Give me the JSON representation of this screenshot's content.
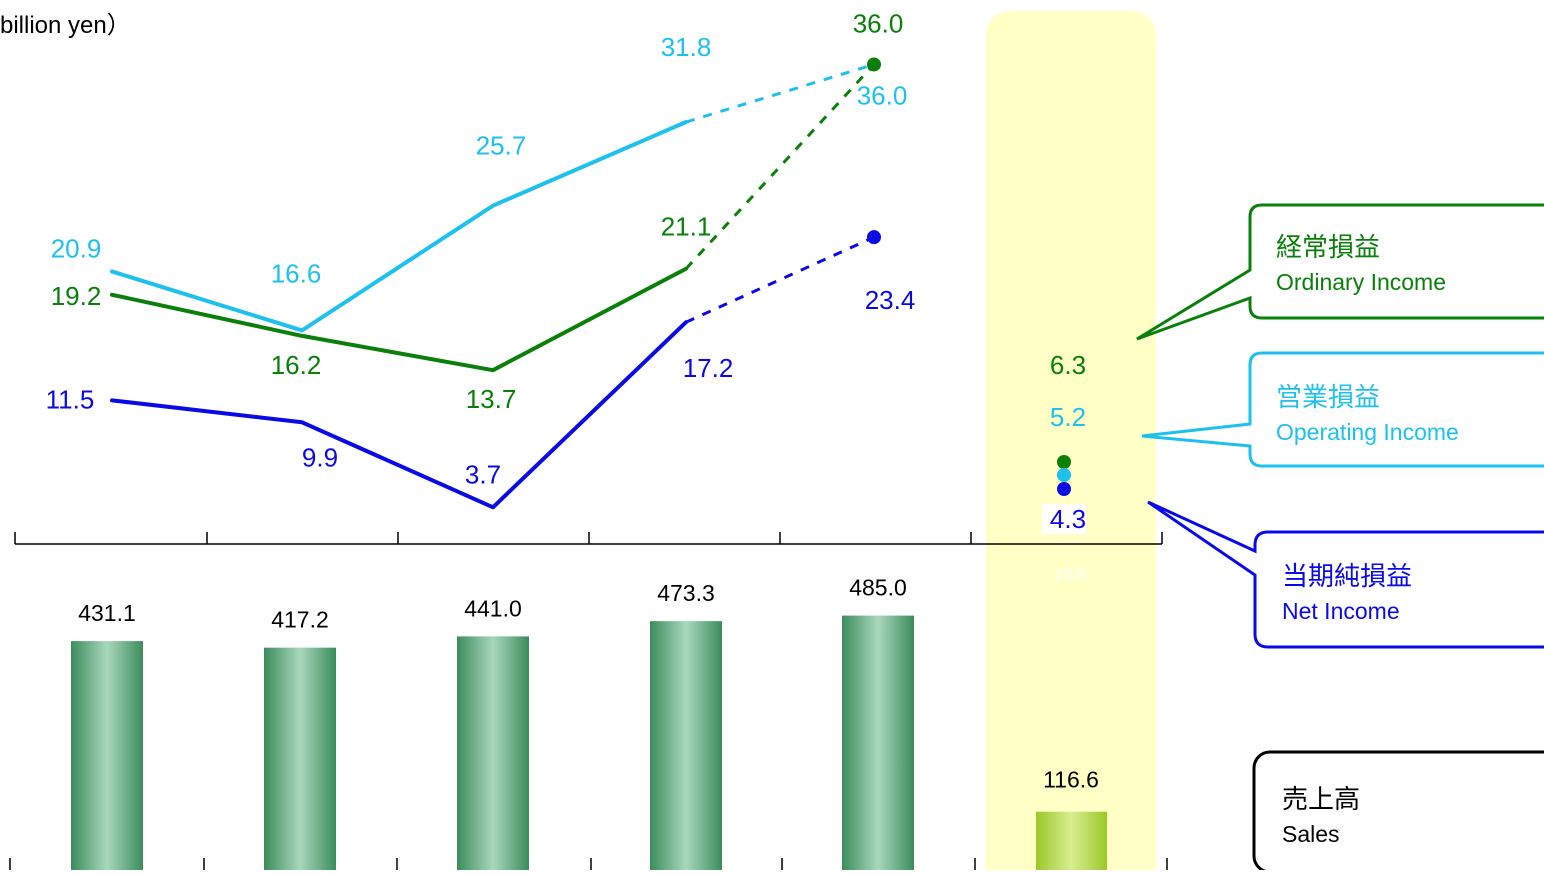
{
  "unit_label": "billion yen）",
  "highlight_period_label": "15/6",
  "colors": {
    "ordinary": "#0a800a",
    "operating": "#1ec0ee",
    "net": "#0a0ae6",
    "sales_bar_dark": "#3c8c5c",
    "sales_bar_light": "#a8d8bc",
    "q_bar_dark": "#9ac828",
    "q_bar_light": "#d8ee90",
    "highlight": "#ffffc6",
    "axis": "#000000",
    "sales_border": "#000000"
  },
  "legend": {
    "ordinary": {
      "jp": "経常損益",
      "en": "Ordinary Income"
    },
    "operating": {
      "jp": "営業損益",
      "en": "Operating Income"
    },
    "net": {
      "jp": "当期純損益",
      "en": "Net Income"
    },
    "sales": {
      "jp": "売上高",
      "en": "Sales"
    }
  },
  "chart_data": [
    {
      "type": "line",
      "series": [
        {
          "name": "Operating Income",
          "values": [
            20.9,
            16.6,
            25.7,
            31.8,
            36.0
          ],
          "color": "operating"
        },
        {
          "name": "Ordinary Income",
          "values": [
            19.2,
            16.2,
            13.7,
            21.1,
            36.0
          ],
          "color": "ordinary"
        },
        {
          "name": "Net Income",
          "values": [
            11.5,
            9.9,
            3.7,
            17.2,
            23.4
          ],
          "color": "net"
        }
      ],
      "dashed_last_segment": true,
      "quarter_points": {
        "Ordinary Income": 6.3,
        "Operating Income": 5.2,
        "Net Income": 4.3
      }
    },
    {
      "type": "bar",
      "series": [
        {
          "name": "Sales",
          "values": [
            431.1,
            417.2,
            441.0,
            473.3,
            485.0
          ]
        }
      ],
      "quarter_value": 116.6
    }
  ]
}
